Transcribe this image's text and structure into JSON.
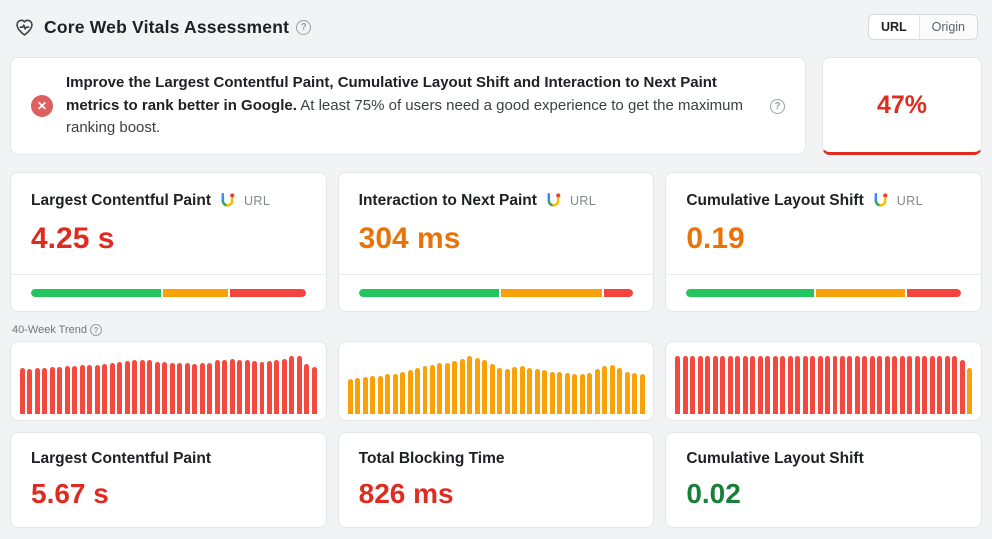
{
  "colors": {
    "good": "#22c55e",
    "needs_improvement": "#f9a109",
    "poor": "#f4443e",
    "value_red": "#e02b20",
    "value_orange": "#e8730b",
    "value_green": "#188038",
    "trend_red": "#f4493f",
    "trend_orange": "#f9a109",
    "score_red": "#e02b20"
  },
  "header": {
    "title": "Core Web Vitals Assessment",
    "toggle": {
      "url_label": "URL",
      "origin_label": "Origin",
      "selected": "URL"
    }
  },
  "alert": {
    "bold_text": "Improve the Largest Contentful Paint, Cumulative Layout Shift and Interaction to Next Paint metrics to rank better in Google.",
    "regular_text": " At least 75% of users need a good experience to get the maximum ranking boost.",
    "score": "47%"
  },
  "metric_cards": [
    {
      "label": "Largest Contentful Paint",
      "source": "URL",
      "value": "4.25 s",
      "value_color": "#e02b20",
      "distribution": [
        {
          "pct": 48,
          "color": "#22c55e"
        },
        {
          "pct": 24,
          "color": "#f9a109"
        },
        {
          "pct": 28,
          "color": "#f4443e"
        }
      ]
    },
    {
      "label": "Interaction to Next Paint",
      "source": "URL",
      "value": "304 ms",
      "value_color": "#e8730b",
      "distribution": [
        {
          "pct": 52,
          "color": "#22c55e"
        },
        {
          "pct": 37,
          "color": "#f9a109"
        },
        {
          "pct": 11,
          "color": "#f4443e"
        }
      ]
    },
    {
      "label": "Cumulative Layout Shift",
      "source": "URL",
      "value": "0.19",
      "value_color": "#e8730b",
      "distribution": [
        {
          "pct": 47,
          "color": "#22c55e"
        },
        {
          "pct": 33,
          "color": "#f9a109"
        },
        {
          "pct": 20,
          "color": "#f4443e"
        }
      ]
    }
  ],
  "trend": {
    "label": "40-Week Trend",
    "charts": [
      {
        "name": "lcp-40-week-trend",
        "type": "bar",
        "weeks": 40,
        "color": "#f4493f",
        "values": [
          72,
          71,
          72,
          72,
          73,
          74,
          75,
          75,
          76,
          77,
          76,
          78,
          80,
          82,
          83,
          84,
          85,
          84,
          82,
          81,
          80,
          79,
          79,
          78,
          79,
          80,
          84,
          85,
          86,
          85,
          84,
          83,
          82,
          83,
          84,
          86,
          90,
          91,
          78,
          74
        ]
      },
      {
        "name": "tbt-40-week-trend",
        "type": "bar",
        "weeks": 40,
        "color": "#f9a109",
        "values": [
          55,
          57,
          58,
          59,
          60,
          62,
          63,
          65,
          68,
          72,
          75,
          77,
          79,
          80,
          83,
          86,
          90,
          88,
          84,
          78,
          72,
          71,
          73,
          75,
          72,
          70,
          68,
          66,
          65,
          64,
          63,
          62,
          64,
          70,
          75,
          76,
          72,
          66,
          64,
          63
        ]
      },
      {
        "name": "cls-40-week-trend",
        "type": "bar",
        "weeks": 40,
        "color": "#f4493f",
        "values": [
          90,
          91,
          90,
          91,
          90,
          90,
          91,
          90,
          90,
          91,
          90,
          90,
          91,
          90,
          90,
          91,
          90,
          91,
          90,
          90,
          91,
          90,
          90,
          91,
          90,
          90,
          91,
          90,
          90,
          91,
          90,
          91,
          90,
          90,
          91,
          90,
          91,
          90,
          85,
          72
        ],
        "colors": [
          "#f4493f",
          "#f4493f",
          "#f4493f",
          "#f4493f",
          "#f4493f",
          "#f4493f",
          "#f4493f",
          "#f4493f",
          "#f4493f",
          "#f4493f",
          "#f4493f",
          "#f4493f",
          "#f4493f",
          "#f4493f",
          "#f4493f",
          "#f4493f",
          "#f4493f",
          "#f4493f",
          "#f4493f",
          "#f4493f",
          "#f4493f",
          "#f4493f",
          "#f4493f",
          "#f4493f",
          "#f4493f",
          "#f4493f",
          "#f4493f",
          "#f4493f",
          "#f4493f",
          "#f4493f",
          "#f4493f",
          "#f4493f",
          "#f4493f",
          "#f4493f",
          "#f4493f",
          "#f4493f",
          "#f4493f",
          "#f4493f",
          "#f4493f",
          "#f9a109"
        ]
      }
    ]
  },
  "bottom_cards": [
    {
      "label": "Largest Contentful Paint",
      "value": "5.67 s",
      "value_color": "#e02b20"
    },
    {
      "label": "Total Blocking Time",
      "value": "826 ms",
      "value_color": "#e02b20"
    },
    {
      "label": "Cumulative Layout Shift",
      "value": "0.02",
      "value_color": "#188038"
    }
  ]
}
